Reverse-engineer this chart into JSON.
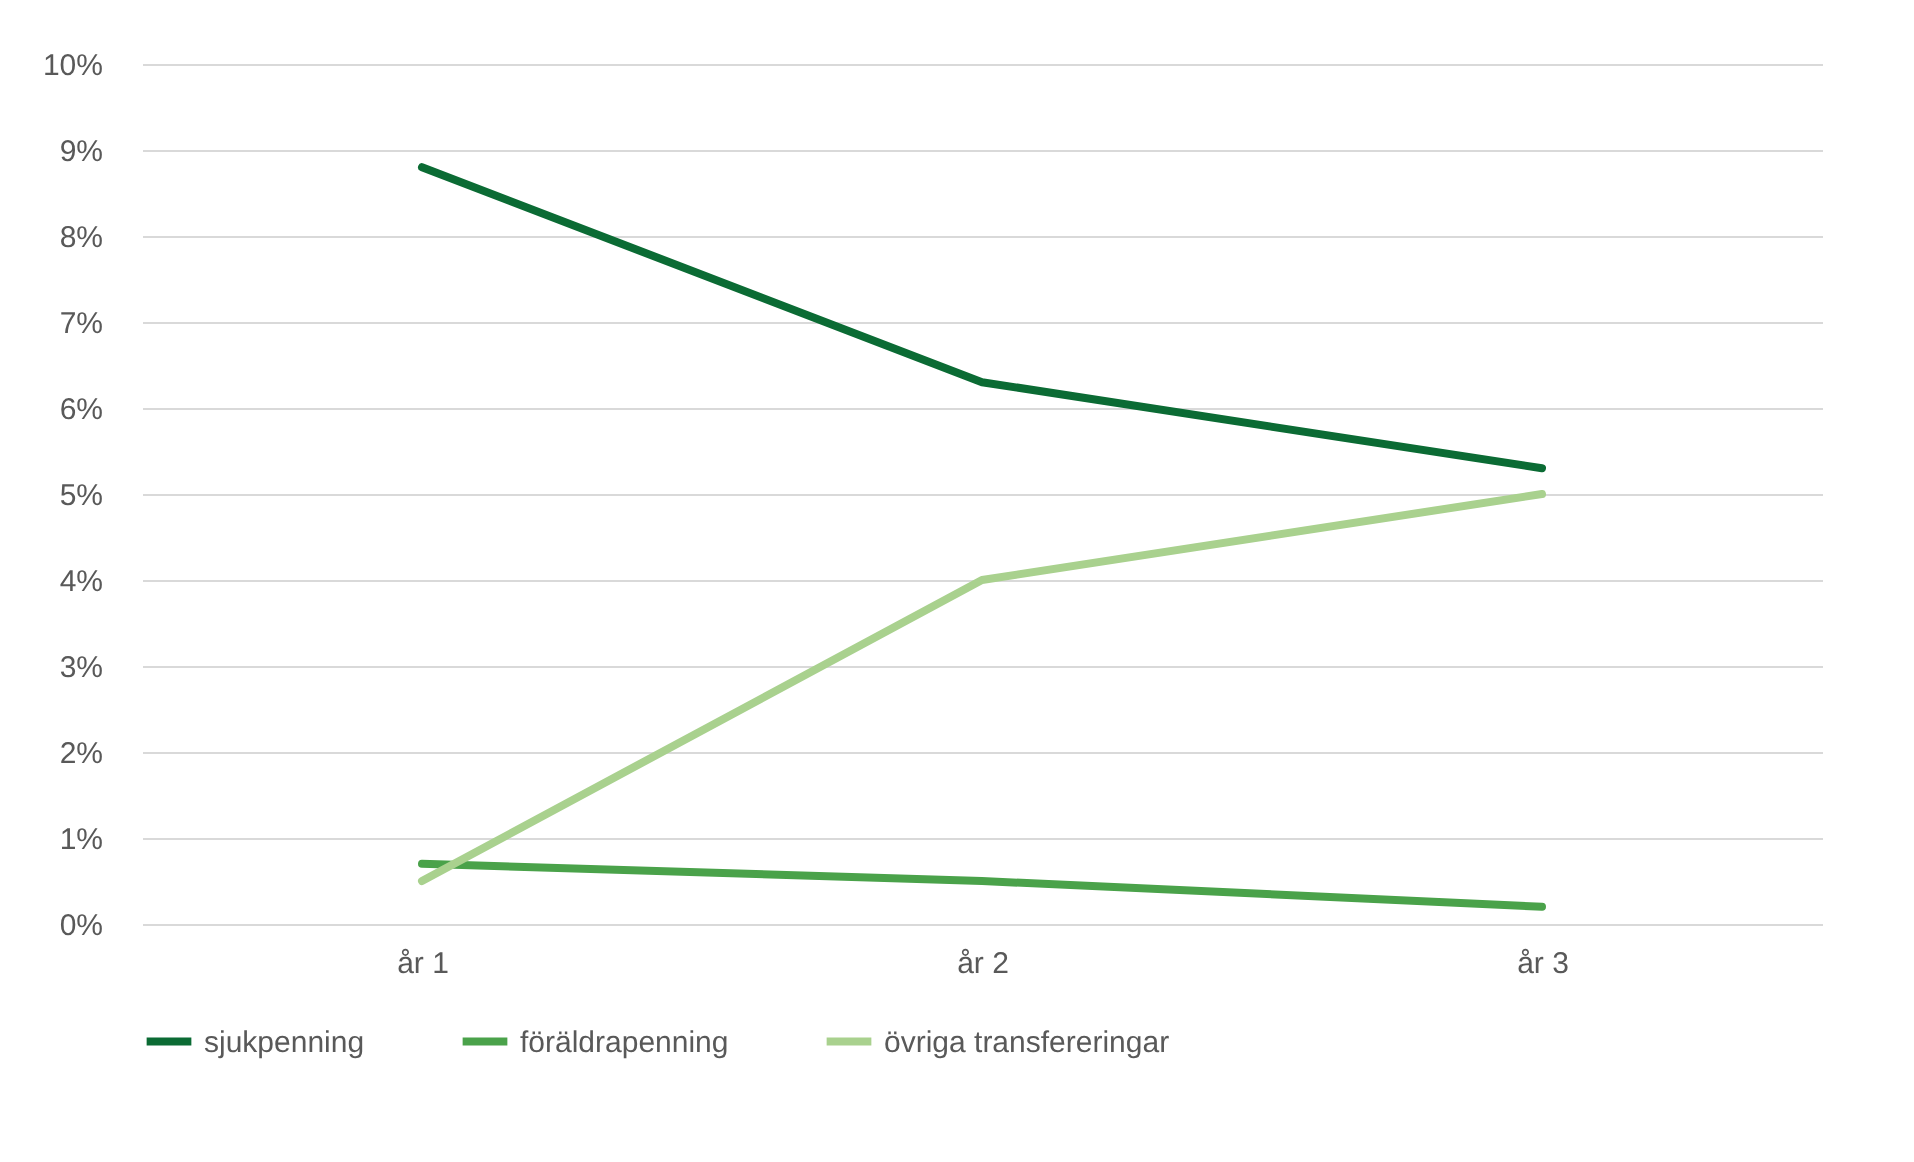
{
  "chart_data": {
    "type": "line",
    "categories": [
      "år 1",
      "år 2",
      "år 3"
    ],
    "series": [
      {
        "name": "sjukpenning",
        "color": "#0b6b34",
        "values": [
          8.8,
          6.3,
          5.3
        ]
      },
      {
        "name": "föräldrapenning",
        "color": "#4aa24a",
        "values": [
          0.7,
          0.5,
          0.2
        ]
      },
      {
        "name": "övriga transfereringar",
        "color": "#a9d18e",
        "values": [
          0.5,
          4.0,
          5.0
        ]
      }
    ],
    "ylim": [
      0,
      10
    ],
    "yticks": [
      {
        "value": 0,
        "label": "0%"
      },
      {
        "value": 1,
        "label": "1%"
      },
      {
        "value": 2,
        "label": "2%"
      },
      {
        "value": 3,
        "label": "3%"
      },
      {
        "value": 4,
        "label": "4%"
      },
      {
        "value": 5,
        "label": "5%"
      },
      {
        "value": 6,
        "label": "6%"
      },
      {
        "value": 7,
        "label": "7%"
      },
      {
        "value": 8,
        "label": "8%"
      },
      {
        "value": 9,
        "label": "9%"
      },
      {
        "value": 10,
        "label": "10%"
      }
    ],
    "grid": "y",
    "legend": "bottom",
    "marker": "none",
    "line_style": "solid"
  }
}
